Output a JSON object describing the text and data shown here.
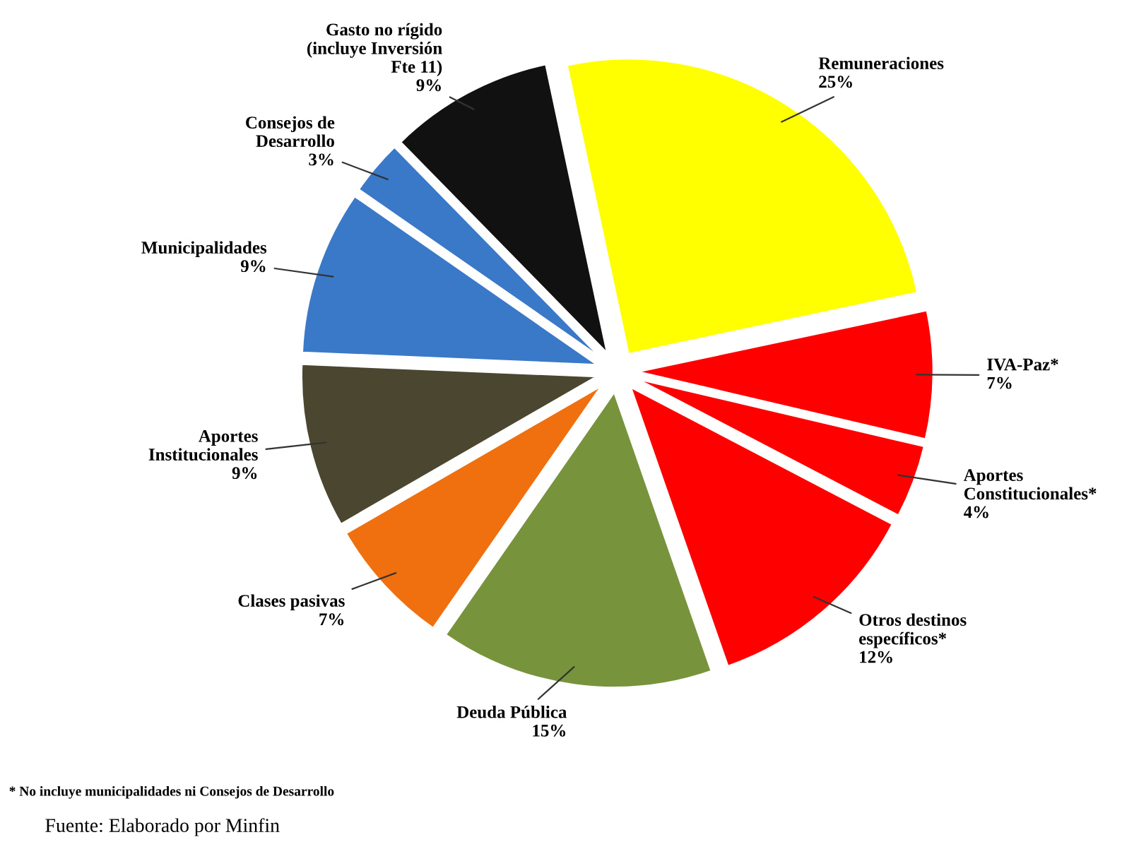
{
  "chart_data": {
    "type": "pie",
    "categories": [
      "Remuneraciones",
      "IVA-Paz*",
      "Aportes\nConstitucionales*",
      "Otros destinos\nespecíficos*",
      "Deuda Pública",
      "Clases pasivas",
      "Aportes\nInstitucionales",
      "Municipalidades",
      "Consejos de\nDesarrollo",
      "Gasto no rígido\n(incluye Inversión\nFte 11)"
    ],
    "values": [
      25,
      7,
      4,
      12,
      15,
      7,
      9,
      9,
      3,
      9
    ],
    "value_labels": [
      "25%",
      "7%",
      "4%",
      "12%",
      "15%",
      "7%",
      "9%",
      "9%",
      "3%",
      "9%"
    ],
    "colors": [
      "#ffff00",
      "#ff0000",
      "#ff0000",
      "#ff0000",
      "#77933c",
      "#f07010",
      "#4a4630",
      "#3a78c8",
      "#3a78c8",
      "#111111"
    ],
    "annotations": [
      "* No incluye municipalidades ni Consejos de Desarrollo",
      "Fuente: Elaborado por Minfin"
    ],
    "legend": false
  }
}
